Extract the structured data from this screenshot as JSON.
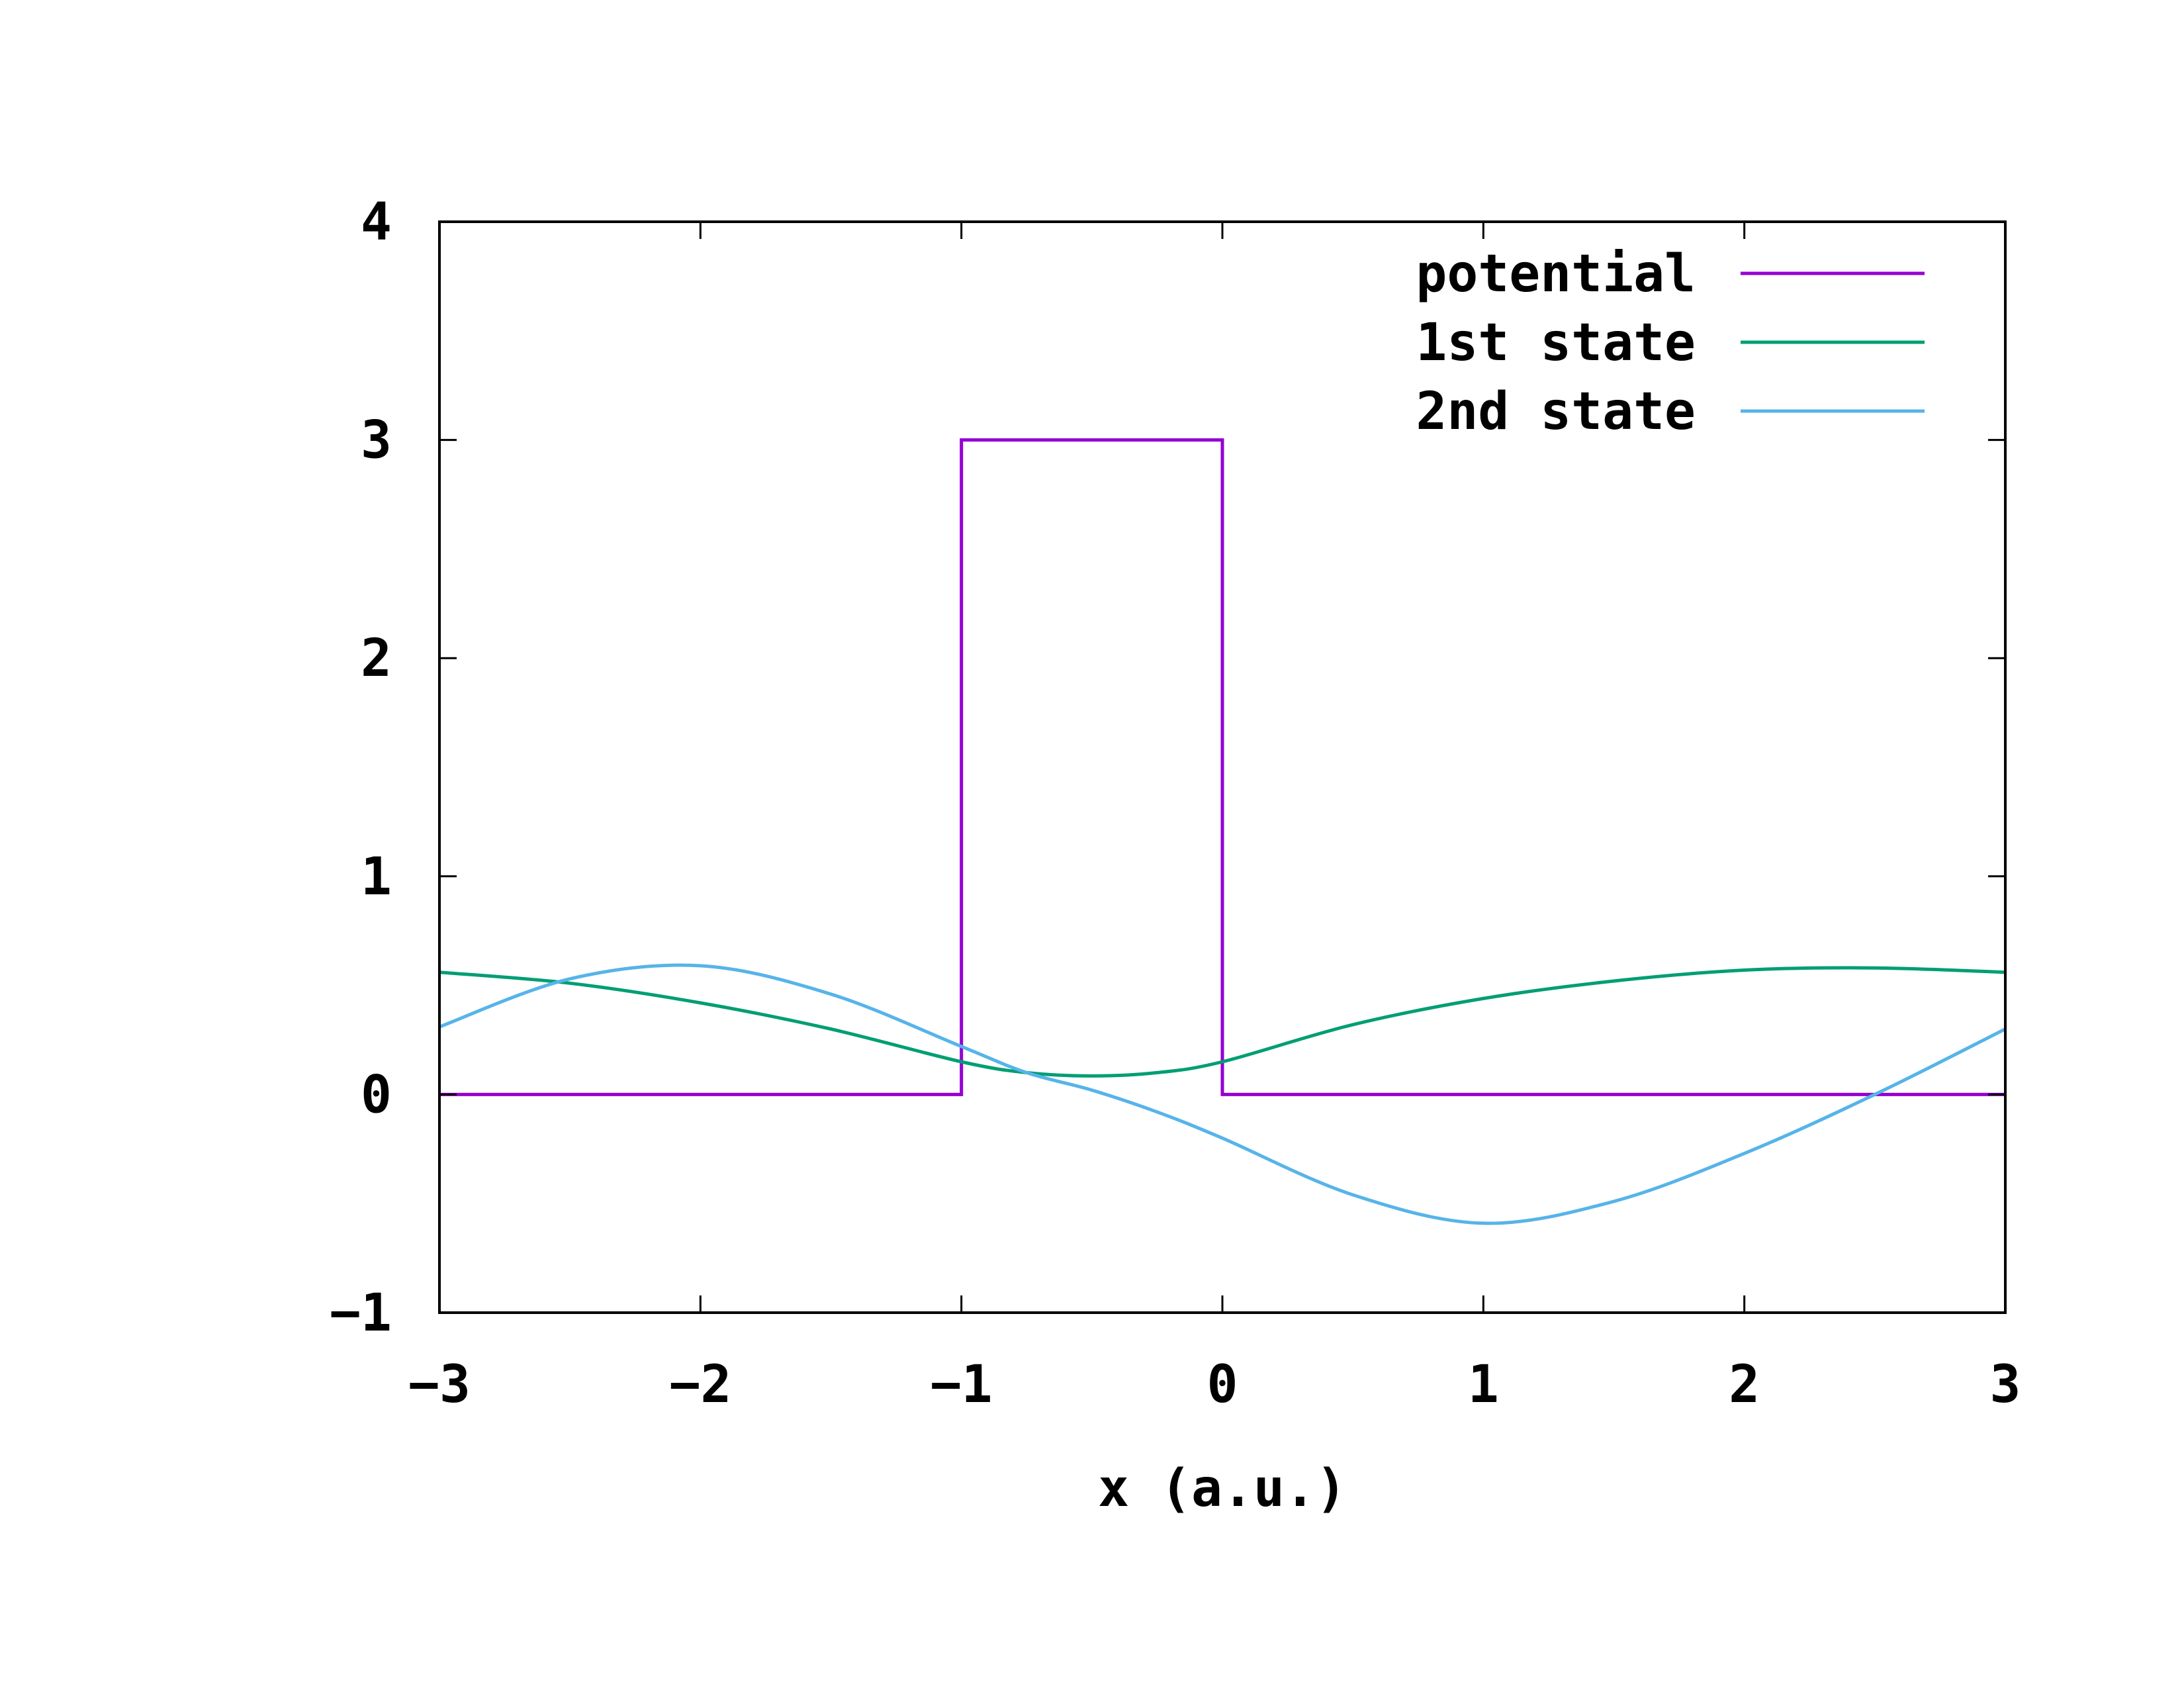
{
  "chart_data": {
    "type": "line",
    "title": "",
    "xlabel": "x (a.u.)",
    "ylabel": "",
    "xlim": [
      -3,
      3
    ],
    "ylim": [
      -1,
      4
    ],
    "grid": false,
    "legend_position": "top-right",
    "x_ticks": [
      -3,
      -2,
      -1,
      0,
      1,
      2,
      3
    ],
    "x_tick_labels": [
      "−3",
      "−2",
      "−1",
      "0",
      "1",
      "2",
      "3"
    ],
    "y_ticks": [
      -1,
      0,
      1,
      2,
      3,
      4
    ],
    "y_tick_labels": [
      "−1",
      "0",
      "1",
      "2",
      "3",
      "4"
    ],
    "series": [
      {
        "name": "potential",
        "color": "#9400d3",
        "x": [
          -3,
          -1,
          -1,
          0,
          0,
          3
        ],
        "y": [
          0,
          0,
          3,
          3,
          0,
          0
        ]
      },
      {
        "name": "1st state",
        "color": "#009e73",
        "x": [
          -3,
          -2.5,
          -2,
          -1.5,
          -1,
          -0.75,
          -0.5,
          -0.25,
          0,
          0.5,
          1,
          1.5,
          2,
          2.5,
          3
        ],
        "y": [
          0.56,
          0.51,
          0.42,
          0.3,
          0.15,
          0.1,
          0.085,
          0.1,
          0.15,
          0.32,
          0.44,
          0.52,
          0.57,
          0.58,
          0.56
        ]
      },
      {
        "name": "2nd state",
        "color": "#56b4e9",
        "x": [
          -3,
          -2.5,
          -2,
          -1.5,
          -1,
          -0.75,
          -0.5,
          -0.25,
          0,
          0.5,
          1,
          1.5,
          2,
          2.5,
          3
        ],
        "y": [
          0.31,
          0.53,
          0.59,
          0.46,
          0.22,
          0.1,
          0.02,
          -0.08,
          -0.2,
          -0.46,
          -0.59,
          -0.49,
          -0.27,
          0.0,
          0.3
        ]
      }
    ]
  }
}
